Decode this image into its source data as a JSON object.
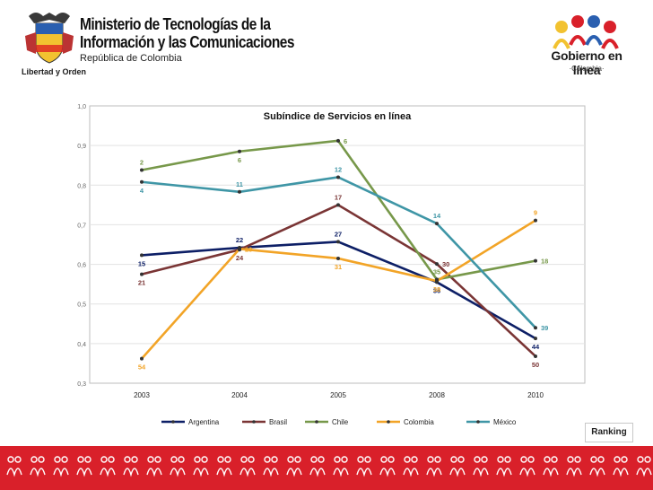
{
  "header": {
    "ministry_line1": "Ministerio de Tecnologías de la",
    "ministry_line2": "Información y las Comunicaciones",
    "ministry_line3": "República de Colombia",
    "motto": "Libertad y Orden",
    "gov_brand": "Gobierno en línea",
    "gov_sub": "·Colombia·"
  },
  "chart_data": {
    "type": "line",
    "title": "Subíndice de Servicios en línea",
    "categories": [
      "2003",
      "2004",
      "2005",
      "2008",
      "2010"
    ],
    "y_ticks": [
      "0,3",
      "0,4",
      "0,5",
      "0,6",
      "0,7",
      "0,8",
      "0,9",
      "1,0"
    ],
    "ylim": [
      0.3,
      1.0
    ],
    "grid": true,
    "legend_position": "bottom",
    "series": [
      {
        "name": "Argentina",
        "color": "#0d1f66",
        "values": [
          0.623,
          0.642,
          0.657,
          0.555,
          0.413
        ],
        "ranks": [
          "15",
          "22",
          "27",
          "36",
          "44"
        ],
        "rank_pos": [
          "below",
          "above",
          "above",
          "below",
          "below"
        ]
      },
      {
        "name": "Brasil",
        "color": "#7a3535",
        "values": [
          0.575,
          0.637,
          0.75,
          0.601,
          0.368
        ],
        "ranks": [
          "21",
          "24",
          "17",
          "30",
          "50"
        ],
        "rank_pos": [
          "below",
          "below",
          "above",
          "right",
          "below"
        ]
      },
      {
        "name": "Chile",
        "color": "#77984a",
        "values": [
          0.838,
          0.885,
          0.912,
          0.562,
          0.609
        ],
        "ranks": [
          "2",
          "6",
          "6",
          "35",
          "18"
        ],
        "rank_pos": [
          "above",
          "below",
          "right",
          "above",
          "right"
        ]
      },
      {
        "name": "Colombia",
        "color": "#f2a427",
        "values": [
          0.362,
          0.639,
          0.615,
          0.558,
          0.711
        ],
        "ranks": [
          "54",
          "23",
          "31",
          "38",
          "9"
        ],
        "rank_pos": [
          "below",
          "right",
          "below",
          "below",
          "above"
        ]
      },
      {
        "name": "México",
        "color": "#3f96a6",
        "values": [
          0.808,
          0.783,
          0.82,
          0.703,
          0.44
        ],
        "ranks": [
          "4",
          "11",
          "12",
          "14",
          "39"
        ],
        "rank_pos": [
          "below",
          "above",
          "above",
          "above",
          "right"
        ]
      }
    ]
  },
  "ranking_label": "Ranking"
}
